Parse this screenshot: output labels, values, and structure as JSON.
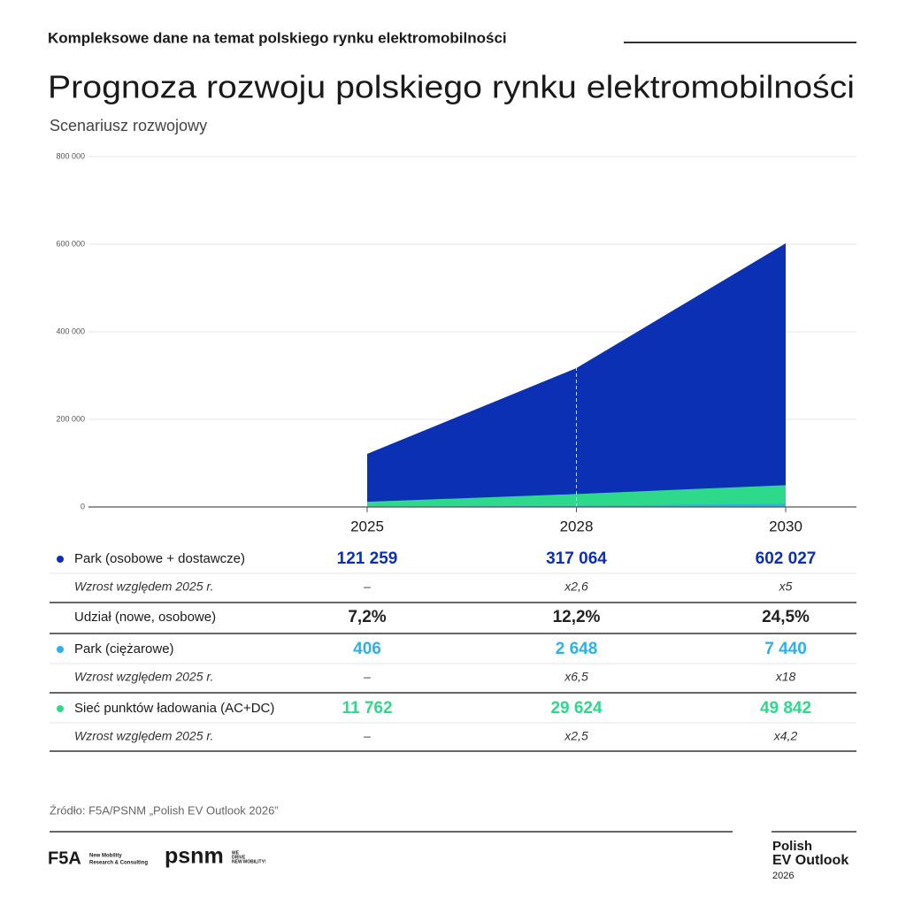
{
  "header": {
    "kicker": "Kompleksowe dane na temat polskiego rynku elektromobilności"
  },
  "chart_data": {
    "type": "area",
    "title": "Prognoza rozwoju polskiego rynku elektromobilności",
    "subtitle": "Scenariusz rozwojowy",
    "categories": [
      "2025",
      "2028",
      "2030"
    ],
    "series": [
      {
        "name": "Park (osobowe + dostawcze)",
        "color": "#0b30b4",
        "values": [
          121259,
          317064,
          602027
        ],
        "value_labels": [
          "121 259",
          "317 064",
          "602 027"
        ]
      },
      {
        "name": "Park (ciężarowe)",
        "color": "#2cb1e8",
        "values": [
          406,
          2648,
          7440
        ],
        "value_labels": [
          "406",
          "2 648",
          "7 440"
        ]
      },
      {
        "name": "Sieć punktów ładowania (AC+DC)",
        "color": "#2fd98c",
        "values": [
          11762,
          29624,
          49842
        ],
        "value_labels": [
          "11 762",
          "29 624",
          "49 842"
        ]
      }
    ],
    "ylim": [
      0,
      800000
    ],
    "yticks": [
      0,
      {
        "value": 200000,
        "label": "200 000"
      },
      {
        "value": 400000,
        "label": "400 000"
      },
      {
        "value": 600000,
        "label": "600 000"
      },
      {
        "value": 800000,
        "label": "800 000"
      }
    ],
    "grid": true
  },
  "table": {
    "share_row": {
      "label": "Udział (nowe, osobowe)",
      "cells": [
        "7,2%",
        "12,2%",
        "24,5%"
      ]
    },
    "growth_rows": [
      {
        "label": "Wzrost względem 2025 r.",
        "cells": [
          "–",
          "x2,6",
          "x5"
        ]
      },
      {
        "label": "Wzrost względem 2025 r.",
        "cells": [
          "–",
          "x6,5",
          "x18"
        ]
      },
      {
        "label": "Wzrost względem 2025 r.",
        "cells": [
          "–",
          "x2,5",
          "x4,2"
        ]
      }
    ]
  },
  "footer": {
    "source": "Źródło: F5A/PSNM „Polish EV Outlook 2026”",
    "f5a": {
      "name": "F5A",
      "tagline": [
        "New Mobility",
        "Research & Consulting"
      ]
    },
    "psnm": {
      "name": "psnm",
      "tagline": [
        "WE",
        "DRIVE",
        "NEW MOBILITY!"
      ]
    },
    "outlook": [
      "Polish",
      "EV Outlook",
      "2026"
    ]
  }
}
